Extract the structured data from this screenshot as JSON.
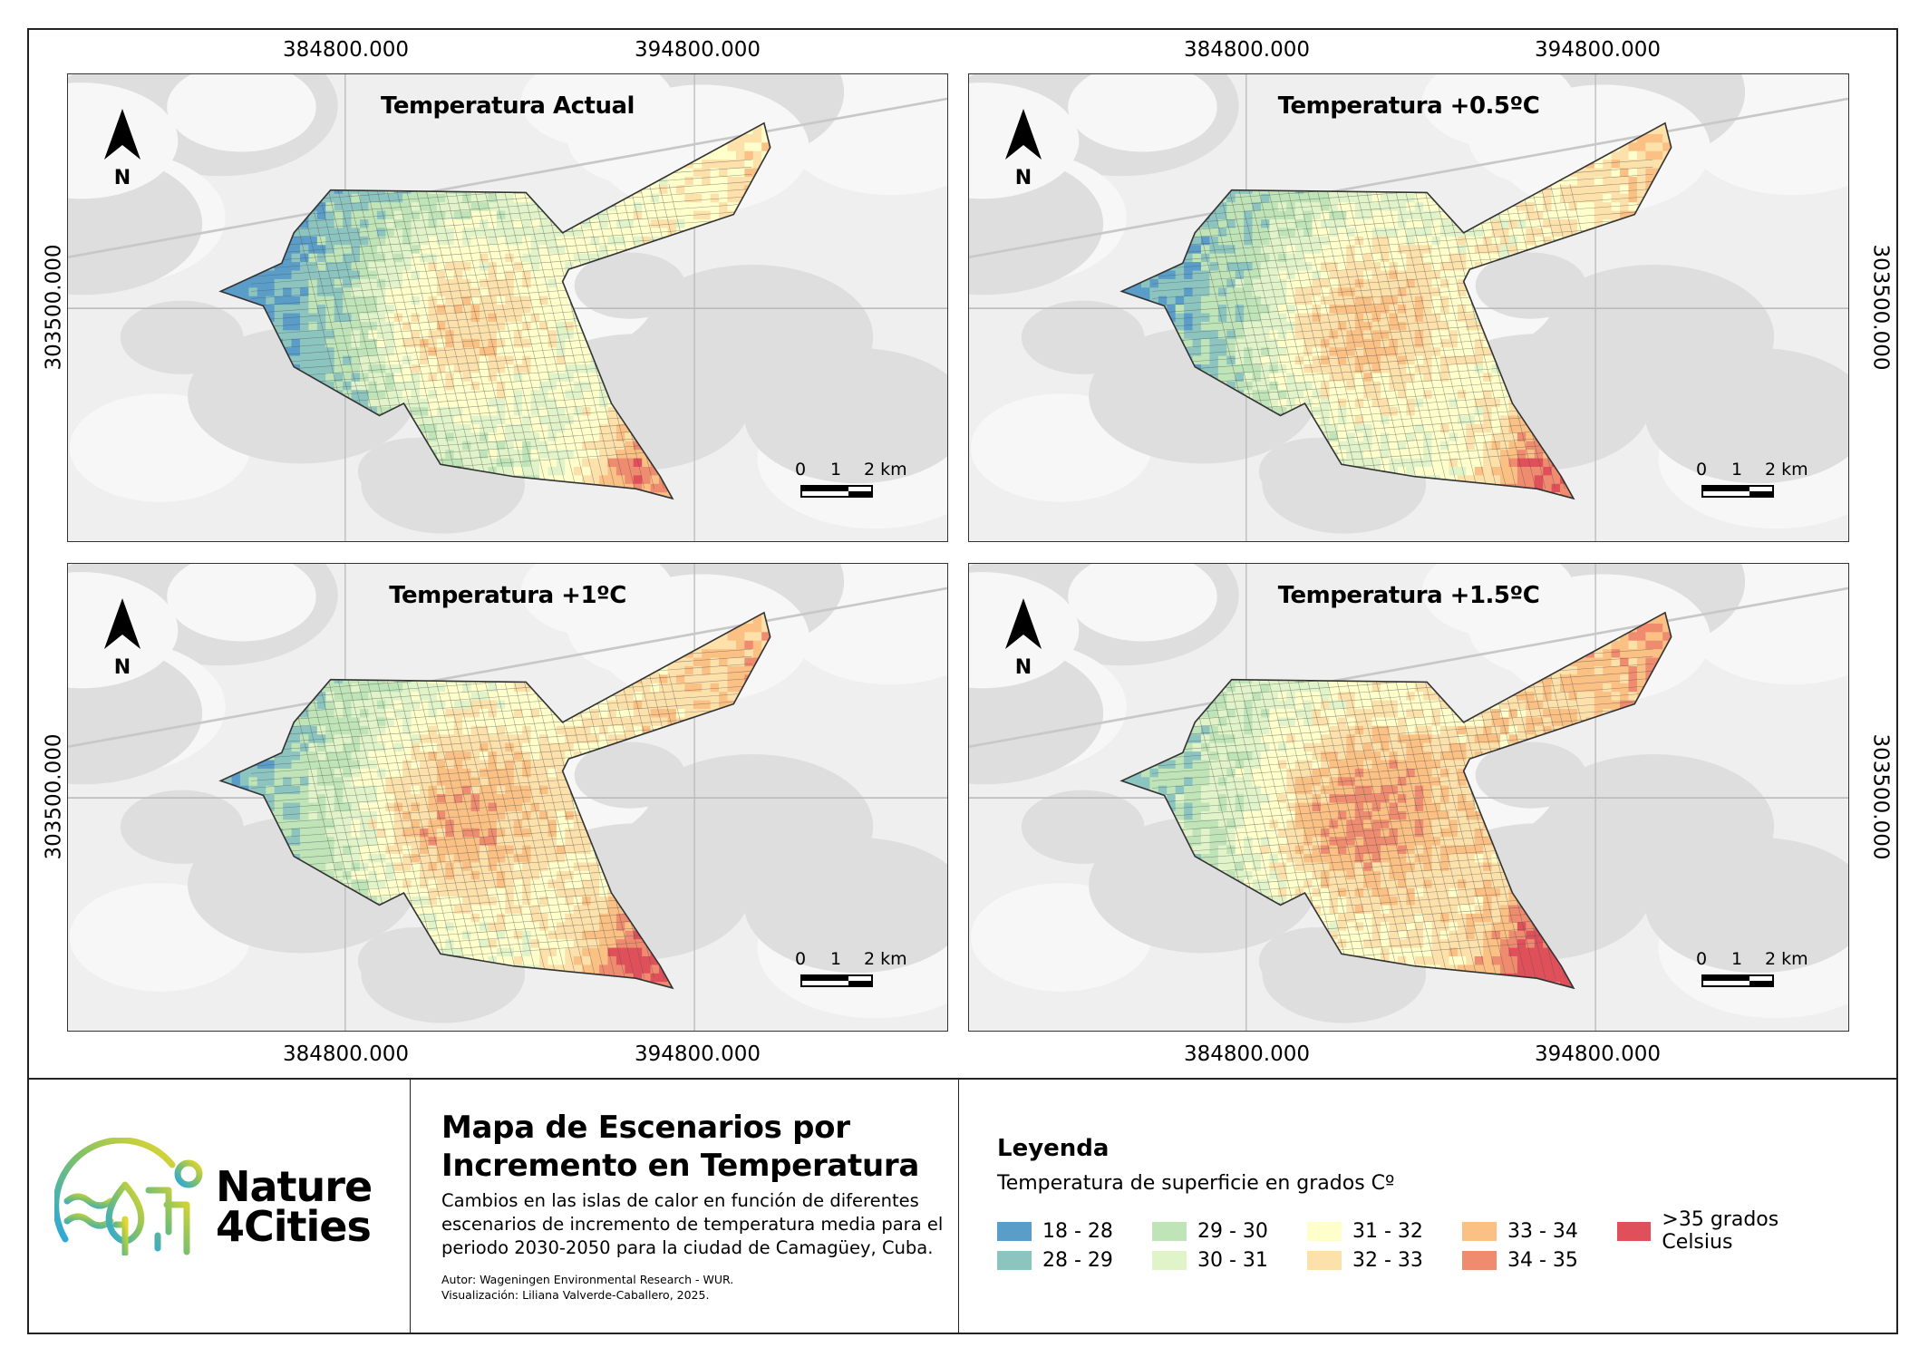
{
  "x_ticks": [
    "384800.000",
    "394800.000"
  ],
  "y_tick": "303500.000",
  "north_label": "N",
  "scale_labels": [
    "0",
    "1",
    "2 km"
  ],
  "panels": [
    {
      "title": "Temperatura Actual"
    },
    {
      "title": "Temperatura +0.5ºC"
    },
    {
      "title": "Temperatura +1ºC"
    },
    {
      "title": "Temperatura +1.5ºC"
    }
  ],
  "info": {
    "title_line1": "Mapa de Escenarios por",
    "title_line2": "Incremento en Temperatura",
    "subtitle": "Cambios en las islas de calor en función de diferentes escenarios de incremento de temperatura media para el periodo 2030-2050 para la ciudad de Camagüey, Cuba.",
    "author": "Autor: Wageningen Environmental Research - WUR.",
    "visualization": "Visualización: Liliana Valverde-Caballero, 2025."
  },
  "logo": {
    "line1": "Nature",
    "line2": "4Cities"
  },
  "legend": {
    "title": "Leyenda",
    "subtitle": "Temperatura de superficie en grados Cº",
    "items": [
      {
        "label": "18 - 28",
        "color": "#5a9dc9"
      },
      {
        "label": "28 - 29",
        "color": "#8cc4c0"
      },
      {
        "label": "29 - 30",
        "color": "#bfe4b8"
      },
      {
        "label": "30 - 31",
        "color": "#e1f3c9"
      },
      {
        "label": "31 - 32",
        "color": "#ffffcb"
      },
      {
        "label": "32 - 33",
        "color": "#fde1ab"
      },
      {
        "label": "33 - 34",
        "color": "#fbc083"
      },
      {
        "label": "34 - 35",
        "color": "#ef8b6e"
      },
      {
        "label": ">35 grados Celsius",
        "color": "#e0505a"
      }
    ]
  }
}
